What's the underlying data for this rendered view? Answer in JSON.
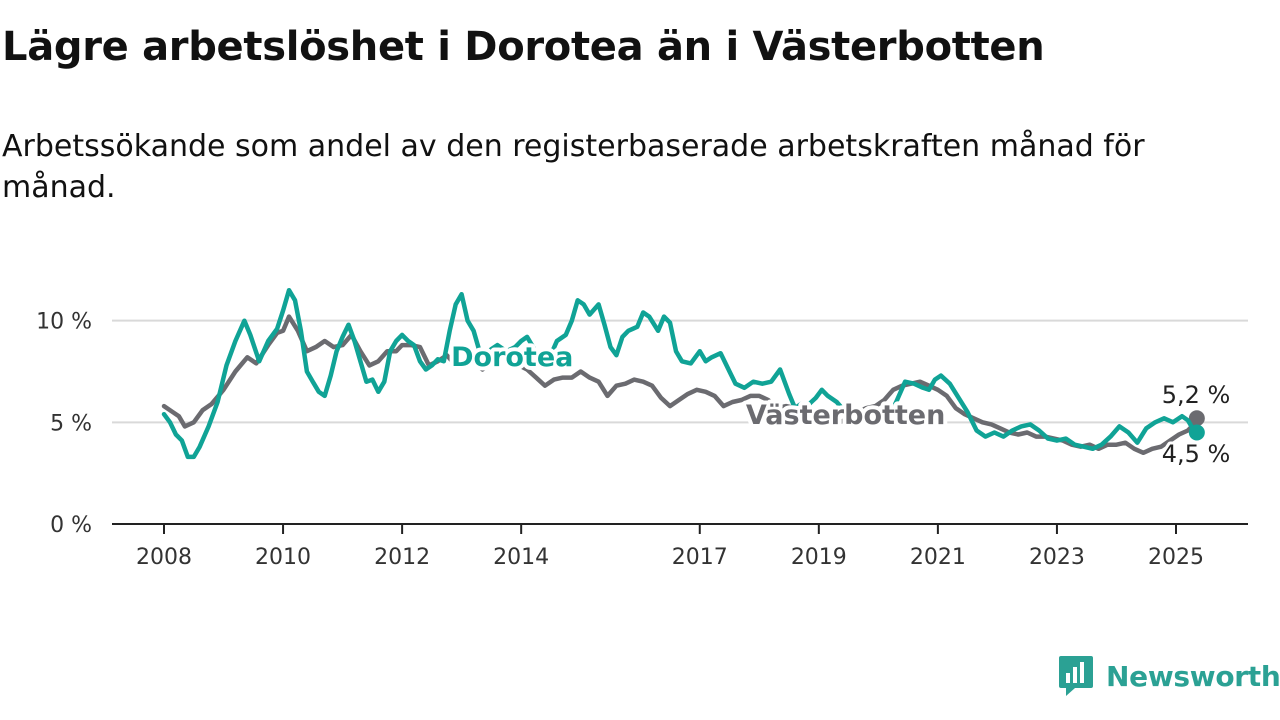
{
  "title": "Lägre arbetslöshet i Dorotea än i Västerbotten",
  "subtitle": "Arbetssökande som andel av den registerbaserade arbetskraften månad för månad.",
  "brand": "Newsworthy",
  "colors": {
    "dorotea": "#10a396",
    "vasterbotten": "#6b6b70",
    "grid": "#d9d9d9",
    "axis": "#222222",
    "brand": "#2ba194"
  },
  "chart_data": {
    "type": "line",
    "ylim": [
      0,
      12
    ],
    "yticks": [
      {
        "v": 0,
        "label": "0 %"
      },
      {
        "v": 5,
        "label": "5 %"
      },
      {
        "v": 10,
        "label": "10 %"
      }
    ],
    "xlim": [
      2008,
      2026.2
    ],
    "xticks": [
      {
        "v": 2008,
        "label": "2008"
      },
      {
        "v": 2010,
        "label": "2010"
      },
      {
        "v": 2012,
        "label": "2012"
      },
      {
        "v": 2014,
        "label": "2014"
      },
      {
        "v": 2017,
        "label": "2017"
      },
      {
        "v": 2019,
        "label": "2019"
      },
      {
        "v": 2021,
        "label": "2021"
      },
      {
        "v": 2023,
        "label": "2023"
      },
      {
        "v": 2025,
        "label": "2025"
      }
    ],
    "grid": true,
    "series": [
      {
        "name": "Västerbotten",
        "end_label": "5,2 %",
        "points": [
          [
            2008.0,
            5.8
          ],
          [
            2008.15,
            5.5
          ],
          [
            2008.25,
            5.3
          ],
          [
            2008.35,
            4.8
          ],
          [
            2008.5,
            5.0
          ],
          [
            2008.65,
            5.6
          ],
          [
            2008.8,
            5.9
          ],
          [
            2009.0,
            6.6
          ],
          [
            2009.2,
            7.5
          ],
          [
            2009.4,
            8.2
          ],
          [
            2009.55,
            7.9
          ],
          [
            2009.75,
            8.8
          ],
          [
            2009.9,
            9.4
          ],
          [
            2010.0,
            9.5
          ],
          [
            2010.1,
            10.2
          ],
          [
            2010.25,
            9.5
          ],
          [
            2010.4,
            8.5
          ],
          [
            2010.55,
            8.7
          ],
          [
            2010.7,
            9.0
          ],
          [
            2010.85,
            8.7
          ],
          [
            2011.0,
            8.8
          ],
          [
            2011.15,
            9.3
          ],
          [
            2011.3,
            8.5
          ],
          [
            2011.45,
            7.8
          ],
          [
            2011.6,
            8.0
          ],
          [
            2011.75,
            8.5
          ],
          [
            2011.9,
            8.5
          ],
          [
            2012.0,
            8.8
          ],
          [
            2012.15,
            8.8
          ],
          [
            2012.3,
            8.7
          ],
          [
            2012.45,
            7.8
          ],
          [
            2012.6,
            8.0
          ],
          [
            2012.75,
            8.3
          ],
          [
            2012.9,
            7.8
          ],
          [
            2013.05,
            8.0
          ],
          [
            2013.2,
            8.0
          ],
          [
            2013.35,
            7.6
          ],
          [
            2013.5,
            8.0
          ],
          [
            2013.7,
            8.1
          ],
          [
            2013.9,
            7.9
          ],
          [
            2014.1,
            7.6
          ],
          [
            2014.25,
            7.2
          ],
          [
            2014.4,
            6.8
          ],
          [
            2014.55,
            7.1
          ],
          [
            2014.7,
            7.2
          ],
          [
            2014.85,
            7.2
          ],
          [
            2015.0,
            7.5
          ],
          [
            2015.15,
            7.2
          ],
          [
            2015.3,
            7.0
          ],
          [
            2015.45,
            6.3
          ],
          [
            2015.6,
            6.8
          ],
          [
            2015.75,
            6.9
          ],
          [
            2015.9,
            7.1
          ],
          [
            2016.05,
            7.0
          ],
          [
            2016.2,
            6.8
          ],
          [
            2016.35,
            6.2
          ],
          [
            2016.5,
            5.8
          ],
          [
            2016.65,
            6.1
          ],
          [
            2016.8,
            6.4
          ],
          [
            2016.95,
            6.6
          ],
          [
            2017.1,
            6.5
          ],
          [
            2017.25,
            6.3
          ],
          [
            2017.4,
            5.8
          ],
          [
            2017.55,
            6.0
          ],
          [
            2017.7,
            6.1
          ],
          [
            2017.85,
            6.3
          ],
          [
            2018.0,
            6.3
          ],
          [
            2018.15,
            6.1
          ],
          [
            2018.3,
            5.7
          ],
          [
            2018.45,
            5.8
          ],
          [
            2018.6,
            5.7
          ],
          [
            2018.75,
            5.6
          ],
          [
            2018.9,
            5.5
          ],
          [
            2019.05,
            5.6
          ],
          [
            2019.2,
            5.4
          ],
          [
            2019.35,
            5.0
          ],
          [
            2019.5,
            5.2
          ],
          [
            2019.65,
            5.5
          ],
          [
            2019.8,
            5.7
          ],
          [
            2019.95,
            5.8
          ],
          [
            2020.1,
            6.1
          ],
          [
            2020.25,
            6.6
          ],
          [
            2020.4,
            6.8
          ],
          [
            2020.55,
            6.9
          ],
          [
            2020.7,
            7.0
          ],
          [
            2020.85,
            6.8
          ],
          [
            2021.0,
            6.6
          ],
          [
            2021.15,
            6.3
          ],
          [
            2021.3,
            5.7
          ],
          [
            2021.45,
            5.4
          ],
          [
            2021.6,
            5.2
          ],
          [
            2021.75,
            5.0
          ],
          [
            2021.9,
            4.9
          ],
          [
            2022.05,
            4.7
          ],
          [
            2022.2,
            4.5
          ],
          [
            2022.35,
            4.4
          ],
          [
            2022.5,
            4.5
          ],
          [
            2022.65,
            4.3
          ],
          [
            2022.8,
            4.3
          ],
          [
            2022.95,
            4.2
          ],
          [
            2023.1,
            4.1
          ],
          [
            2023.25,
            3.9
          ],
          [
            2023.4,
            3.8
          ],
          [
            2023.55,
            3.9
          ],
          [
            2023.7,
            3.7
          ],
          [
            2023.85,
            3.9
          ],
          [
            2024.0,
            3.9
          ],
          [
            2024.15,
            4.0
          ],
          [
            2024.3,
            3.7
          ],
          [
            2024.45,
            3.5
          ],
          [
            2024.6,
            3.7
          ],
          [
            2024.75,
            3.8
          ],
          [
            2024.9,
            4.1
          ],
          [
            2025.05,
            4.4
          ],
          [
            2025.2,
            4.6
          ],
          [
            2025.3,
            4.9
          ],
          [
            2025.35,
            5.2
          ]
        ]
      },
      {
        "name": "Dorotea",
        "end_label": "4,5 %",
        "points": [
          [
            2008.0,
            5.4
          ],
          [
            2008.1,
            5.0
          ],
          [
            2008.2,
            4.4
          ],
          [
            2008.3,
            4.1
          ],
          [
            2008.4,
            3.3
          ],
          [
            2008.5,
            3.3
          ],
          [
            2008.6,
            3.8
          ],
          [
            2008.75,
            4.8
          ],
          [
            2008.9,
            6.0
          ],
          [
            2009.05,
            7.8
          ],
          [
            2009.2,
            9.0
          ],
          [
            2009.35,
            10.0
          ],
          [
            2009.45,
            9.3
          ],
          [
            2009.6,
            8.0
          ],
          [
            2009.75,
            9.0
          ],
          [
            2009.9,
            9.6
          ],
          [
            2010.0,
            10.5
          ],
          [
            2010.1,
            11.5
          ],
          [
            2010.2,
            11.0
          ],
          [
            2010.3,
            9.5
          ],
          [
            2010.4,
            7.5
          ],
          [
            2010.5,
            7.0
          ],
          [
            2010.6,
            6.5
          ],
          [
            2010.7,
            6.3
          ],
          [
            2010.8,
            7.3
          ],
          [
            2010.9,
            8.5
          ],
          [
            2011.0,
            9.2
          ],
          [
            2011.1,
            9.8
          ],
          [
            2011.2,
            9.0
          ],
          [
            2011.3,
            8.0
          ],
          [
            2011.4,
            7.0
          ],
          [
            2011.5,
            7.1
          ],
          [
            2011.6,
            6.5
          ],
          [
            2011.7,
            7.0
          ],
          [
            2011.8,
            8.5
          ],
          [
            2011.9,
            9.0
          ],
          [
            2012.0,
            9.3
          ],
          [
            2012.1,
            9.0
          ],
          [
            2012.2,
            8.8
          ],
          [
            2012.3,
            8.0
          ],
          [
            2012.4,
            7.6
          ],
          [
            2012.5,
            7.8
          ],
          [
            2012.6,
            8.1
          ],
          [
            2012.7,
            8.0
          ],
          [
            2012.8,
            9.5
          ],
          [
            2012.9,
            10.8
          ],
          [
            2013.0,
            11.3
          ],
          [
            2013.1,
            10.0
          ],
          [
            2013.2,
            9.5
          ],
          [
            2013.3,
            8.5
          ],
          [
            2013.4,
            8.3
          ],
          [
            2013.5,
            8.6
          ],
          [
            2013.6,
            8.8
          ],
          [
            2013.75,
            8.5
          ],
          [
            2013.9,
            8.7
          ],
          [
            2014.0,
            9.0
          ],
          [
            2014.1,
            9.2
          ],
          [
            2014.2,
            8.7
          ],
          [
            2014.3,
            7.8
          ],
          [
            2014.45,
            8.0
          ],
          [
            2014.6,
            9.0
          ],
          [
            2014.75,
            9.3
          ],
          [
            2014.85,
            10.0
          ],
          [
            2014.95,
            11.0
          ],
          [
            2015.05,
            10.8
          ],
          [
            2015.15,
            10.3
          ],
          [
            2015.3,
            10.8
          ],
          [
            2015.4,
            9.8
          ],
          [
            2015.5,
            8.7
          ],
          [
            2015.6,
            8.3
          ],
          [
            2015.7,
            9.2
          ],
          [
            2015.8,
            9.5
          ],
          [
            2015.95,
            9.7
          ],
          [
            2016.05,
            10.4
          ],
          [
            2016.15,
            10.2
          ],
          [
            2016.3,
            9.5
          ],
          [
            2016.4,
            10.2
          ],
          [
            2016.5,
            9.9
          ],
          [
            2016.6,
            8.5
          ],
          [
            2016.7,
            8.0
          ],
          [
            2016.85,
            7.9
          ],
          [
            2017.0,
            8.5
          ],
          [
            2017.1,
            8.0
          ],
          [
            2017.2,
            8.2
          ],
          [
            2017.35,
            8.4
          ],
          [
            2017.5,
            7.5
          ],
          [
            2017.6,
            6.9
          ],
          [
            2017.75,
            6.7
          ],
          [
            2017.9,
            7.0
          ],
          [
            2018.05,
            6.9
          ],
          [
            2018.2,
            7.0
          ],
          [
            2018.35,
            7.6
          ],
          [
            2018.5,
            6.4
          ],
          [
            2018.6,
            5.7
          ],
          [
            2018.7,
            5.9
          ],
          [
            2018.8,
            5.8
          ],
          [
            2018.95,
            6.2
          ],
          [
            2019.05,
            6.6
          ],
          [
            2019.15,
            6.3
          ],
          [
            2019.3,
            6.0
          ],
          [
            2019.45,
            5.5
          ],
          [
            2019.6,
            5.6
          ],
          [
            2019.75,
            5.1
          ],
          [
            2019.9,
            5.4
          ],
          [
            2020.05,
            5.6
          ],
          [
            2020.2,
            5.4
          ],
          [
            2020.3,
            6.0
          ],
          [
            2020.45,
            7.0
          ],
          [
            2020.6,
            6.9
          ],
          [
            2020.75,
            6.7
          ],
          [
            2020.85,
            6.6
          ],
          [
            2020.95,
            7.1
          ],
          [
            2021.05,
            7.3
          ],
          [
            2021.2,
            6.9
          ],
          [
            2021.35,
            6.2
          ],
          [
            2021.5,
            5.5
          ],
          [
            2021.65,
            4.6
          ],
          [
            2021.8,
            4.3
          ],
          [
            2021.95,
            4.5
          ],
          [
            2022.1,
            4.3
          ],
          [
            2022.25,
            4.6
          ],
          [
            2022.4,
            4.8
          ],
          [
            2022.55,
            4.9
          ],
          [
            2022.7,
            4.6
          ],
          [
            2022.85,
            4.2
          ],
          [
            2023.0,
            4.1
          ],
          [
            2023.15,
            4.2
          ],
          [
            2023.3,
            3.9
          ],
          [
            2023.45,
            3.8
          ],
          [
            2023.6,
            3.7
          ],
          [
            2023.75,
            3.9
          ],
          [
            2023.9,
            4.3
          ],
          [
            2024.05,
            4.8
          ],
          [
            2024.2,
            4.5
          ],
          [
            2024.35,
            4.0
          ],
          [
            2024.5,
            4.7
          ],
          [
            2024.65,
            5.0
          ],
          [
            2024.8,
            5.2
          ],
          [
            2024.95,
            5.0
          ],
          [
            2025.1,
            5.3
          ],
          [
            2025.2,
            5.1
          ],
          [
            2025.3,
            4.6
          ],
          [
            2025.35,
            4.5
          ]
        ]
      }
    ]
  }
}
